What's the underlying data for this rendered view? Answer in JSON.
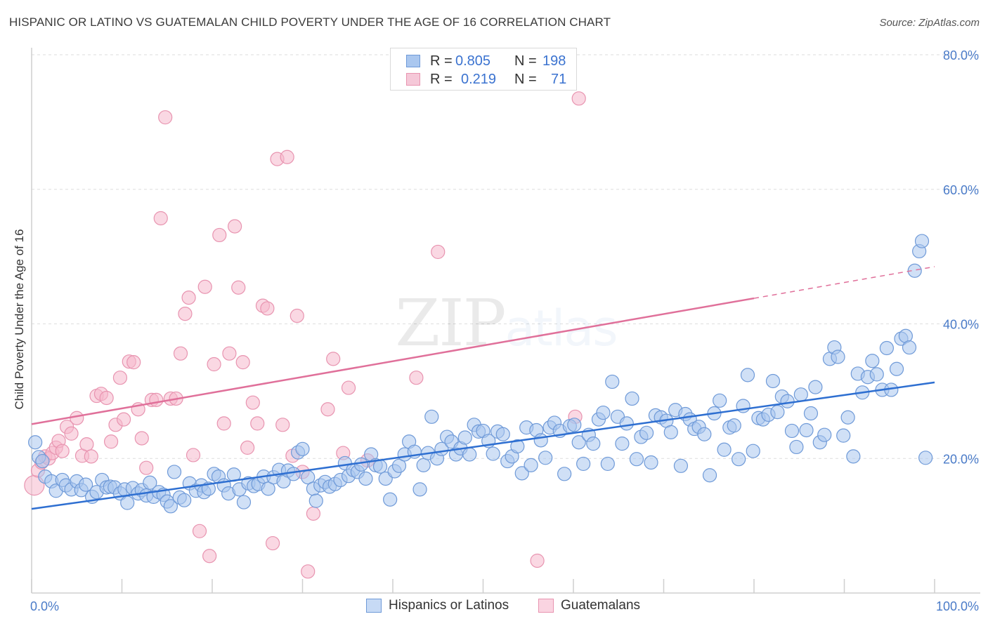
{
  "title": "HISPANIC OR LATINO VS GUATEMALAN CHILD POVERTY UNDER THE AGE OF 16 CORRELATION CHART",
  "source": "Source: ZipAtlas.com",
  "watermark": "ZIPatlas",
  "colors": {
    "blue_fill": "#aac7ef",
    "blue_stroke": "#6f9ad8",
    "blue_line": "#2e6fd1",
    "pink_fill": "#f5b8cc",
    "pink_stroke": "#e894b0",
    "pink_line": "#e0709a",
    "tick_text": "#4a7bc8"
  },
  "stats_legend": {
    "blue": {
      "r_label": "R =",
      "r_value": "0.805",
      "n_label": "N =",
      "n_value": "198"
    },
    "pink": {
      "r_label": "R =",
      "r_value": "0.219",
      "n_label": "N =",
      "n_value": "71"
    }
  },
  "bottom_legend": {
    "blue_label": "Hispanics or Latinos",
    "pink_label": "Guatemalans"
  },
  "chart_data": {
    "type": "scatter",
    "title": "HISPANIC OR LATINO VS GUATEMALAN CHILD POVERTY UNDER THE AGE OF 16 CORRELATION CHART",
    "xlabel": "",
    "ylabel": "Child Poverty Under the Age of 16",
    "xlim": [
      0,
      100
    ],
    "ylim": [
      0,
      80
    ],
    "x_tick_labels": [
      "0.0%",
      "100.0%"
    ],
    "y_ticks": [
      20,
      40,
      60,
      80
    ],
    "y_tick_labels": [
      "20.0%",
      "40.0%",
      "60.0%",
      "80.0%"
    ],
    "grid": true,
    "legend_position": "top-center",
    "series": [
      {
        "name": "Hispanics or Latinos",
        "color": "#aac7ef",
        "trend": {
          "x": [
            0,
            100
          ],
          "y": [
            12.5,
            31.3
          ],
          "style": "solid"
        },
        "points": [
          [
            0.4,
            22.4
          ],
          [
            0.8,
            20.2
          ],
          [
            1.2,
            19.6
          ],
          [
            1.5,
            17.3
          ],
          [
            2.2,
            16.6
          ],
          [
            2.7,
            15.2
          ],
          [
            3.4,
            16.8
          ],
          [
            3.8,
            16.0
          ],
          [
            4.4,
            15.4
          ],
          [
            5.0,
            16.6
          ],
          [
            5.5,
            15.3
          ],
          [
            6.0,
            16.1
          ],
          [
            6.7,
            14.3
          ],
          [
            7.2,
            15.0
          ],
          [
            7.8,
            16.8
          ],
          [
            8.3,
            15.7
          ],
          [
            8.7,
            15.8
          ],
          [
            9.2,
            15.7
          ],
          [
            9.8,
            14.8
          ],
          [
            10.3,
            15.4
          ],
          [
            10.6,
            13.4
          ],
          [
            11.2,
            15.6
          ],
          [
            11.8,
            14.8
          ],
          [
            12.2,
            15.3
          ],
          [
            12.7,
            14.5
          ],
          [
            13.1,
            16.4
          ],
          [
            13.5,
            14.3
          ],
          [
            14.1,
            15.0
          ],
          [
            14.6,
            14.6
          ],
          [
            15.0,
            13.6
          ],
          [
            15.4,
            12.9
          ],
          [
            15.8,
            18.0
          ],
          [
            16.4,
            14.2
          ],
          [
            16.9,
            13.8
          ],
          [
            17.5,
            16.3
          ],
          [
            18.2,
            15.2
          ],
          [
            18.8,
            16.0
          ],
          [
            19.1,
            15.0
          ],
          [
            19.6,
            15.5
          ],
          [
            20.2,
            17.7
          ],
          [
            20.7,
            17.3
          ],
          [
            21.3,
            16.0
          ],
          [
            21.8,
            14.8
          ],
          [
            22.4,
            17.6
          ],
          [
            23.0,
            15.4
          ],
          [
            23.5,
            13.5
          ],
          [
            24.0,
            16.3
          ],
          [
            24.6,
            15.9
          ],
          [
            25.1,
            16.2
          ],
          [
            25.7,
            17.3
          ],
          [
            26.2,
            15.5
          ],
          [
            26.8,
            17.2
          ],
          [
            27.4,
            18.3
          ],
          [
            27.9,
            16.6
          ],
          [
            28.4,
            18.2
          ],
          [
            29.0,
            17.7
          ],
          [
            29.5,
            20.9
          ],
          [
            30.0,
            21.4
          ],
          [
            30.6,
            17.2
          ],
          [
            31.2,
            15.5
          ],
          [
            31.5,
            13.7
          ],
          [
            32.0,
            16.0
          ],
          [
            32.5,
            16.5
          ],
          [
            33.0,
            15.8
          ],
          [
            33.6,
            16.2
          ],
          [
            34.2,
            16.8
          ],
          [
            34.7,
            19.3
          ],
          [
            35.1,
            17.4
          ],
          [
            35.6,
            18.3
          ],
          [
            36.1,
            18.0
          ],
          [
            36.5,
            19.1
          ],
          [
            37.0,
            17.0
          ],
          [
            37.6,
            20.6
          ],
          [
            38.1,
            19.0
          ],
          [
            38.6,
            18.8
          ],
          [
            39.2,
            17.0
          ],
          [
            39.7,
            13.9
          ],
          [
            40.2,
            18.1
          ],
          [
            40.7,
            18.9
          ],
          [
            41.3,
            20.6
          ],
          [
            41.8,
            22.5
          ],
          [
            42.4,
            21.0
          ],
          [
            43.0,
            15.4
          ],
          [
            43.4,
            19.0
          ],
          [
            43.9,
            20.8
          ],
          [
            44.3,
            26.2
          ],
          [
            44.9,
            20.0
          ],
          [
            45.4,
            21.4
          ],
          [
            46.0,
            23.2
          ],
          [
            46.5,
            22.5
          ],
          [
            47.0,
            20.6
          ],
          [
            47.5,
            21.5
          ],
          [
            48.0,
            23.1
          ],
          [
            48.5,
            20.6
          ],
          [
            49.0,
            25.0
          ],
          [
            49.5,
            24.0
          ],
          [
            50.0,
            24.1
          ],
          [
            50.6,
            22.6
          ],
          [
            51.1,
            20.7
          ],
          [
            51.6,
            24.0
          ],
          [
            52.2,
            23.6
          ],
          [
            52.7,
            19.6
          ],
          [
            53.2,
            20.3
          ],
          [
            53.8,
            21.8
          ],
          [
            54.3,
            17.8
          ],
          [
            54.8,
            24.6
          ],
          [
            55.3,
            19.0
          ],
          [
            55.9,
            24.2
          ],
          [
            56.4,
            22.7
          ],
          [
            56.9,
            20.1
          ],
          [
            57.4,
            24.6
          ],
          [
            57.9,
            25.3
          ],
          [
            58.5,
            24.1
          ],
          [
            59.0,
            17.7
          ],
          [
            59.6,
            24.8
          ],
          [
            60.1,
            25.0
          ],
          [
            60.6,
            22.4
          ],
          [
            61.1,
            19.2
          ],
          [
            61.7,
            23.5
          ],
          [
            62.2,
            22.2
          ],
          [
            62.8,
            25.8
          ],
          [
            63.3,
            26.8
          ],
          [
            63.8,
            19.2
          ],
          [
            64.3,
            31.4
          ],
          [
            64.9,
            26.2
          ],
          [
            65.4,
            22.2
          ],
          [
            65.9,
            25.2
          ],
          [
            66.5,
            28.9
          ],
          [
            67.0,
            19.9
          ],
          [
            67.5,
            23.2
          ],
          [
            68.1,
            23.8
          ],
          [
            68.6,
            19.4
          ],
          [
            69.1,
            26.4
          ],
          [
            69.7,
            26.1
          ],
          [
            70.3,
            25.6
          ],
          [
            70.8,
            23.9
          ],
          [
            71.3,
            27.2
          ],
          [
            71.9,
            18.9
          ],
          [
            72.4,
            26.6
          ],
          [
            72.9,
            25.8
          ],
          [
            73.4,
            24.4
          ],
          [
            73.9,
            24.7
          ],
          [
            74.5,
            23.6
          ],
          [
            75.1,
            17.5
          ],
          [
            75.6,
            26.7
          ],
          [
            76.2,
            28.6
          ],
          [
            76.7,
            21.3
          ],
          [
            77.3,
            24.6
          ],
          [
            77.8,
            24.9
          ],
          [
            78.3,
            19.9
          ],
          [
            78.8,
            27.8
          ],
          [
            79.3,
            32.4
          ],
          [
            79.9,
            21.1
          ],
          [
            80.5,
            26.0
          ],
          [
            81.0,
            25.8
          ],
          [
            81.6,
            26.5
          ],
          [
            82.1,
            31.5
          ],
          [
            82.6,
            26.9
          ],
          [
            83.1,
            29.2
          ],
          [
            83.7,
            28.5
          ],
          [
            84.2,
            24.1
          ],
          [
            84.7,
            21.7
          ],
          [
            85.2,
            29.5
          ],
          [
            85.8,
            24.2
          ],
          [
            86.3,
            26.7
          ],
          [
            86.8,
            30.6
          ],
          [
            87.3,
            22.4
          ],
          [
            87.8,
            23.5
          ],
          [
            88.4,
            34.8
          ],
          [
            88.9,
            36.5
          ],
          [
            89.3,
            35.1
          ],
          [
            89.9,
            23.4
          ],
          [
            90.4,
            26.1
          ],
          [
            91.0,
            20.3
          ],
          [
            91.5,
            32.6
          ],
          [
            92.0,
            29.8
          ],
          [
            92.6,
            32.1
          ],
          [
            93.1,
            34.5
          ],
          [
            93.6,
            32.5
          ],
          [
            94.2,
            30.2
          ],
          [
            94.7,
            36.4
          ],
          [
            95.2,
            30.2
          ],
          [
            95.8,
            33.3
          ],
          [
            96.3,
            37.8
          ],
          [
            96.8,
            38.2
          ],
          [
            97.2,
            36.5
          ],
          [
            97.8,
            47.9
          ],
          [
            98.3,
            50.8
          ],
          [
            98.6,
            52.3
          ],
          [
            99.0,
            20.1
          ]
        ]
      },
      {
        "name": "Guatemalans",
        "color": "#f5b8cc",
        "trend": {
          "x": [
            0,
            80
          ],
          "y": [
            25.1,
            43.8
          ],
          "style": "solid",
          "dashed_to": [
            100,
            48.5
          ]
        },
        "points": [
          [
            0.3,
            16.0
          ],
          [
            0.7,
            18.2
          ],
          [
            1.1,
            19.4
          ],
          [
            1.5,
            20.3
          ],
          [
            1.9,
            20.0
          ],
          [
            2.3,
            20.8
          ],
          [
            2.7,
            21.6
          ],
          [
            3.0,
            22.6
          ],
          [
            3.4,
            21.1
          ],
          [
            3.9,
            24.7
          ],
          [
            4.4,
            23.7
          ],
          [
            5.0,
            26.0
          ],
          [
            5.6,
            20.4
          ],
          [
            6.1,
            22.1
          ],
          [
            6.6,
            20.3
          ],
          [
            7.2,
            29.3
          ],
          [
            7.7,
            29.6
          ],
          [
            8.3,
            29.0
          ],
          [
            8.8,
            22.5
          ],
          [
            9.3,
            25.0
          ],
          [
            9.8,
            32.0
          ],
          [
            10.2,
            25.8
          ],
          [
            10.8,
            34.4
          ],
          [
            11.3,
            34.3
          ],
          [
            11.8,
            27.3
          ],
          [
            12.2,
            23.0
          ],
          [
            12.7,
            18.6
          ],
          [
            13.3,
            28.7
          ],
          [
            13.8,
            28.7
          ],
          [
            14.3,
            55.7
          ],
          [
            14.8,
            70.7
          ],
          [
            15.4,
            28.9
          ],
          [
            16.0,
            28.9
          ],
          [
            16.5,
            35.6
          ],
          [
            17.0,
            41.5
          ],
          [
            17.4,
            43.9
          ],
          [
            17.9,
            20.5
          ],
          [
            18.6,
            9.2
          ],
          [
            19.2,
            45.5
          ],
          [
            19.7,
            5.5
          ],
          [
            20.2,
            34.0
          ],
          [
            20.8,
            53.2
          ],
          [
            21.3,
            25.2
          ],
          [
            21.9,
            35.6
          ],
          [
            22.5,
            54.5
          ],
          [
            22.9,
            45.4
          ],
          [
            23.4,
            34.3
          ],
          [
            23.9,
            21.6
          ],
          [
            24.5,
            28.3
          ],
          [
            25.0,
            25.2
          ],
          [
            25.6,
            42.7
          ],
          [
            26.1,
            42.3
          ],
          [
            26.7,
            7.4
          ],
          [
            27.2,
            64.5
          ],
          [
            27.8,
            25.0
          ],
          [
            28.3,
            64.8
          ],
          [
            28.9,
            20.4
          ],
          [
            29.4,
            41.2
          ],
          [
            30.0,
            18.0
          ],
          [
            30.6,
            3.2
          ],
          [
            31.2,
            11.8
          ],
          [
            32.8,
            27.3
          ],
          [
            33.4,
            34.8
          ],
          [
            34.5,
            20.8
          ],
          [
            35.1,
            30.5
          ],
          [
            37.2,
            19.7
          ],
          [
            42.6,
            32.0
          ],
          [
            45.0,
            50.7
          ],
          [
            56.0,
            4.8
          ],
          [
            60.2,
            26.2
          ],
          [
            60.6,
            73.5
          ]
        ]
      }
    ]
  }
}
